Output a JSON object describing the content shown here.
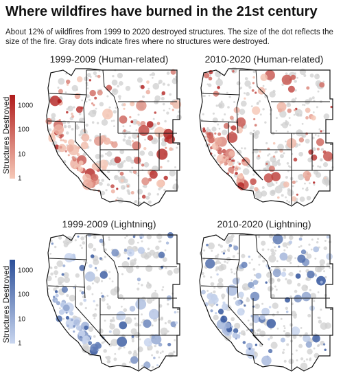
{
  "header": {
    "title": "Where wildfires have burned in the 21st century",
    "subtitle": "About 12% of wildfires from 1999 to 2020 destroyed structures. The size of the dot reflects the size of the fire. Gray dots indicate fires where no structures were destroyed."
  },
  "colors": {
    "human_high": "#b01c1c",
    "human_low": "#f6c9b8",
    "lightning_high": "#2c4f99",
    "lightning_low": "#c9d6ef",
    "no_structures": "#cfcfcf",
    "state_lines": "#111111",
    "land_fill": "#ffffff"
  },
  "legends": {
    "human": {
      "label": "Structures Destroyed",
      "ticks": [
        "1000",
        "100",
        "10",
        "1"
      ],
      "scale": "log"
    },
    "lightning": {
      "label": "Structures Destroyed",
      "ticks": [
        "1000",
        "100",
        "10",
        "1"
      ],
      "scale": "log"
    }
  },
  "panels": [
    {
      "title": "1999-2009 (Human-related)",
      "palette": "human",
      "seed": 11
    },
    {
      "title": "2010-2020 (Human-related)",
      "palette": "human",
      "seed": 23
    },
    {
      "title": "1999-2009 (Lightning)",
      "palette": "lightning",
      "seed": 37
    },
    {
      "title": "2010-2020 (Lightning)",
      "palette": "lightning",
      "seed": 53
    }
  ]
}
